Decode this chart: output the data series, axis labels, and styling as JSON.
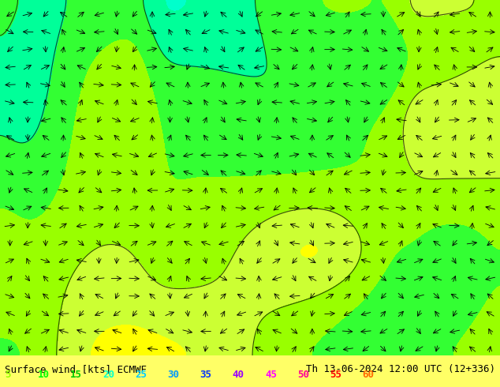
{
  "title_left": "Surface wind [kts] ECMWF",
  "title_right": "Th 13-06-2024 12:00 UTC (12+336)",
  "legend_values": [
    5,
    10,
    15,
    20,
    25,
    30,
    35,
    40,
    45,
    50,
    55,
    60
  ],
  "legend_colors": [
    "#99ff00",
    "#00ff00",
    "#00cc00",
    "#00ffcc",
    "#00ccff",
    "#0099ff",
    "#0033ff",
    "#9900ff",
    "#ff00ff",
    "#ff0099",
    "#ff0000",
    "#ff6600"
  ],
  "background_color": "#ffff00",
  "colormap_levels": [
    0,
    5,
    10,
    15,
    20,
    25,
    30,
    35,
    40,
    45,
    50,
    55,
    60
  ],
  "colormap_colors": [
    "#ffff00",
    "#ccff00",
    "#99ff00",
    "#00ff66",
    "#00ffcc",
    "#00ccff",
    "#0099ff",
    "#0033ff",
    "#6600ff",
    "#cc00ff",
    "#ff00cc",
    "#ff0000"
  ],
  "figsize": [
    6.34,
    4.9
  ],
  "dpi": 100,
  "bottom_bar_height": 0.08,
  "font_color_left": "#000000",
  "font_color_right": "#000000",
  "legend_font_size": 9,
  "label_font_size": 9
}
